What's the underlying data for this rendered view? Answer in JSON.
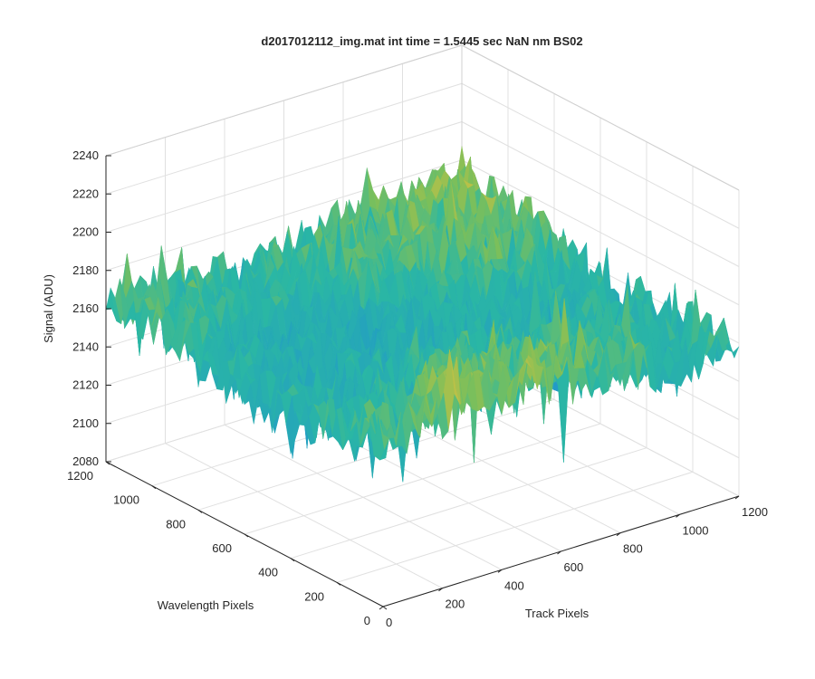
{
  "chart_data": {
    "type": "surface",
    "title": "d2017012112_img.mat int time = 1.5445 sec  NaN nm BS02",
    "xlabel": "Track Pixels",
    "ylabel": "Wavelength Pixels",
    "zlabel": "Signal (ADU)",
    "xlim": [
      0,
      1200
    ],
    "ylim": [
      0,
      1200
    ],
    "zlim": [
      2080,
      2240
    ],
    "x_ticks": [
      "0",
      "200",
      "400",
      "600",
      "800",
      "1000",
      "1200"
    ],
    "y_ticks": [
      "0",
      "200",
      "400",
      "600",
      "800",
      "1000",
      "1200"
    ],
    "z_ticks": [
      "2080",
      "2100",
      "2120",
      "2140",
      "2160",
      "2180",
      "2200",
      "2220",
      "2240"
    ],
    "grid": true,
    "colormap": "parula",
    "colors": {
      "low": "#1f8fd6",
      "mid": "#2ab7a4",
      "mid_high": "#7cbf5a",
      "high": "#e8c23a",
      "grid": "#e0e0e0",
      "axis": "#262626"
    },
    "surface_summary": {
      "typical_level_ADU": 2160,
      "noise_peaks_max_ADU": 2225,
      "noise_dips_min_ADU": 2090
    }
  }
}
